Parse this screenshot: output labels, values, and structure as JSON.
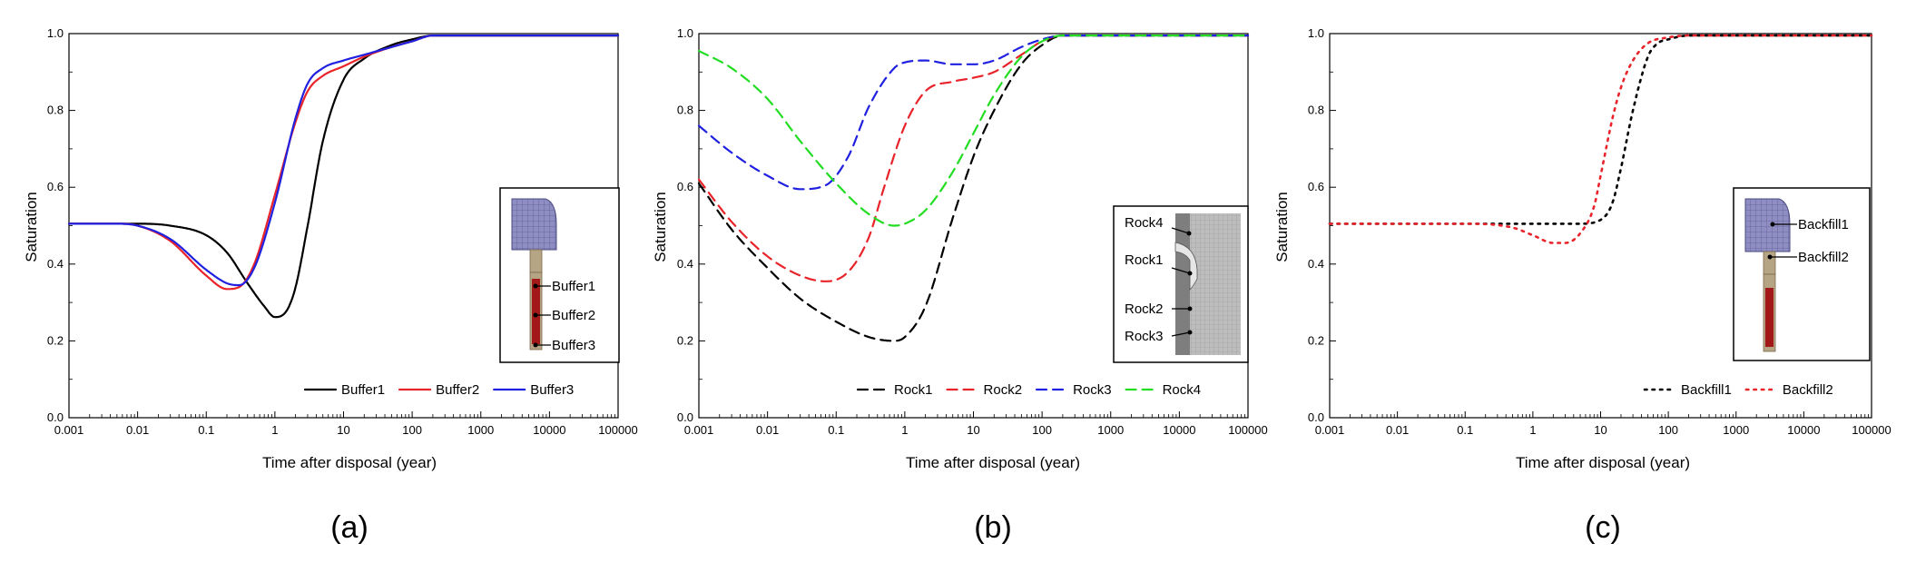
{
  "chart_data": [
    {
      "type": "line",
      "caption": "(a)",
      "xlabel": "Time after disposal (year)",
      "ylabel": "Saturation",
      "xscale": "log",
      "xlim": [
        0.001,
        100000
      ],
      "ylim": [
        0.0,
        1.0
      ],
      "x_ticks": [
        "0.001",
        "0.01",
        "0.1",
        "1",
        "10",
        "100",
        "1000",
        "10000",
        "100000"
      ],
      "y_ticks": [
        "0.0",
        "0.2",
        "0.4",
        "0.6",
        "0.8",
        "1.0"
      ],
      "grid": false,
      "legend_position": "bottom-right",
      "series": [
        {
          "name": "Buffer1",
          "color": "#000000",
          "style": "solid",
          "x": [
            0.001,
            0.01,
            0.03,
            0.1,
            0.2,
            0.4,
            0.7,
            1,
            1.5,
            2,
            3,
            5,
            10,
            20,
            50,
            100,
            200,
            1000,
            100000
          ],
          "y": [
            0.505,
            0.505,
            0.5,
            0.475,
            0.43,
            0.35,
            0.29,
            0.262,
            0.28,
            0.34,
            0.5,
            0.72,
            0.88,
            0.935,
            0.97,
            0.985,
            0.995,
            0.995,
            0.995
          ]
        },
        {
          "name": "Buffer2",
          "color": "#e8232a",
          "style": "solid",
          "x": [
            0.001,
            0.005,
            0.01,
            0.03,
            0.1,
            0.2,
            0.3,
            0.5,
            1,
            2,
            3,
            5,
            10,
            20,
            50,
            100,
            200,
            1000,
            100000
          ],
          "y": [
            0.505,
            0.505,
            0.5,
            0.46,
            0.37,
            0.335,
            0.34,
            0.4,
            0.58,
            0.77,
            0.85,
            0.89,
            0.915,
            0.94,
            0.965,
            0.98,
            0.995,
            0.995,
            0.995
          ]
        },
        {
          "name": "Buffer3",
          "color": "#2020e0",
          "style": "solid",
          "x": [
            0.001,
            0.005,
            0.01,
            0.03,
            0.1,
            0.2,
            0.3,
            0.5,
            1,
            2,
            3,
            5,
            10,
            20,
            50,
            100,
            200,
            1000,
            100000
          ],
          "y": [
            0.505,
            0.505,
            0.5,
            0.465,
            0.385,
            0.35,
            0.345,
            0.39,
            0.56,
            0.78,
            0.87,
            0.91,
            0.93,
            0.945,
            0.965,
            0.98,
            0.995,
            0.995,
            0.995
          ]
        }
      ],
      "inset": {
        "labels": [
          "Buffer1",
          "Buffer2",
          "Buffer3"
        ]
      }
    },
    {
      "type": "line",
      "caption": "(b)",
      "xlabel": "Time after disposal (year)",
      "ylabel": "Saturation",
      "xscale": "log",
      "xlim": [
        0.001,
        100000
      ],
      "ylim": [
        0.0,
        1.0
      ],
      "x_ticks": [
        "0.001",
        "0.01",
        "0.1",
        "1",
        "10",
        "100",
        "1000",
        "10000",
        "100000"
      ],
      "y_ticks": [
        "0.0",
        "0.2",
        "0.4",
        "0.6",
        "0.8",
        "1.0"
      ],
      "grid": false,
      "legend_position": "bottom-right",
      "series": [
        {
          "name": "Rock1",
          "color": "#000000",
          "style": "dashed",
          "x": [
            0.001,
            0.003,
            0.01,
            0.03,
            0.1,
            0.3,
            0.7,
            1,
            2,
            5,
            10,
            20,
            50,
            100,
            200,
            1000,
            100000
          ],
          "y": [
            0.61,
            0.49,
            0.39,
            0.31,
            0.25,
            0.21,
            0.2,
            0.21,
            0.29,
            0.52,
            0.68,
            0.8,
            0.92,
            0.97,
            0.995,
            0.995,
            0.995
          ]
        },
        {
          "name": "Rock2",
          "color": "#e8232a",
          "style": "dashed",
          "x": [
            0.001,
            0.003,
            0.01,
            0.03,
            0.07,
            0.15,
            0.3,
            0.5,
            1,
            2,
            5,
            10,
            20,
            50,
            100,
            200,
            1000,
            100000
          ],
          "y": [
            0.62,
            0.51,
            0.42,
            0.37,
            0.355,
            0.38,
            0.47,
            0.6,
            0.76,
            0.85,
            0.875,
            0.885,
            0.9,
            0.945,
            0.98,
            0.995,
            0.995,
            0.995
          ]
        },
        {
          "name": "Rock3",
          "color": "#2020e0",
          "style": "dashed",
          "x": [
            0.001,
            0.003,
            0.01,
            0.03,
            0.07,
            0.15,
            0.3,
            0.7,
            1,
            2,
            5,
            10,
            20,
            50,
            100,
            200,
            1000,
            100000
          ],
          "y": [
            0.76,
            0.69,
            0.63,
            0.595,
            0.605,
            0.68,
            0.81,
            0.91,
            0.925,
            0.93,
            0.92,
            0.92,
            0.93,
            0.965,
            0.985,
            0.995,
            0.995,
            0.995
          ]
        },
        {
          "name": "Rock4",
          "color": "#22dd22",
          "style": "dashed",
          "x": [
            0.001,
            0.003,
            0.01,
            0.03,
            0.1,
            0.3,
            0.7,
            1,
            2,
            5,
            10,
            20,
            50,
            100,
            200,
            1000,
            100000
          ],
          "y": [
            0.955,
            0.91,
            0.83,
            0.72,
            0.61,
            0.53,
            0.5,
            0.505,
            0.54,
            0.64,
            0.74,
            0.84,
            0.94,
            0.98,
            0.995,
            0.995,
            0.995
          ]
        }
      ],
      "inset": {
        "labels": [
          "Rock4",
          "Rock1",
          "Rock2",
          "Rock3"
        ]
      }
    },
    {
      "type": "line",
      "caption": "(c)",
      "xlabel": "Time after disposal (year)",
      "ylabel": "Saturation",
      "xscale": "log",
      "xlim": [
        0.001,
        100000
      ],
      "ylim": [
        0.0,
        1.0
      ],
      "x_ticks": [
        "0.001",
        "0.01",
        "0.1",
        "1",
        "10",
        "100",
        "1000",
        "10000",
        "100000"
      ],
      "y_ticks": [
        "0.0",
        "0.2",
        "0.4",
        "0.6",
        "0.8",
        "1.0"
      ],
      "grid": false,
      "legend_position": "bottom-right",
      "series": [
        {
          "name": "Backfill1",
          "color": "#000000",
          "style": "dotted",
          "x": [
            0.001,
            0.01,
            0.1,
            1,
            5,
            10,
            15,
            20,
            30,
            50,
            70,
            100,
            200,
            1000,
            100000
          ],
          "y": [
            0.505,
            0.505,
            0.505,
            0.505,
            0.505,
            0.515,
            0.56,
            0.65,
            0.8,
            0.94,
            0.975,
            0.985,
            0.995,
            0.995,
            0.995
          ]
        },
        {
          "name": "Backfill2",
          "color": "#e8232a",
          "style": "dotted",
          "x": [
            0.001,
            0.01,
            0.1,
            0.5,
            1,
            2,
            3,
            5,
            8,
            10,
            15,
            20,
            30,
            50,
            100,
            200,
            1000,
            100000
          ],
          "y": [
            0.505,
            0.505,
            0.505,
            0.495,
            0.475,
            0.455,
            0.455,
            0.48,
            0.55,
            0.63,
            0.78,
            0.86,
            0.93,
            0.975,
            0.99,
            0.995,
            0.995,
            0.995
          ]
        }
      ],
      "inset": {
        "labels": [
          "Backfill1",
          "Backfill2"
        ]
      }
    }
  ]
}
